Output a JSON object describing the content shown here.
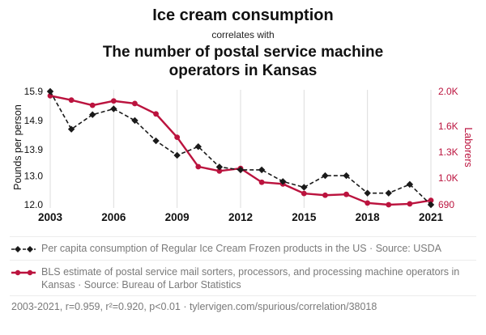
{
  "header": {
    "title": "Ice cream consumption",
    "subtitle": "correlates with",
    "correlate_title": "The number of postal service machine operators in Kansas"
  },
  "colors": {
    "accent_red": "#BB133E",
    "series_black": "#1a1a1a",
    "muted_text": "#7a7a7a",
    "gridline": "#dddddd"
  },
  "chart_data": {
    "type": "line",
    "x": [
      2003,
      2004,
      2005,
      2006,
      2007,
      2008,
      2009,
      2010,
      2011,
      2012,
      2013,
      2014,
      2015,
      2016,
      2017,
      2018,
      2019,
      2020,
      2021
    ],
    "x_ticks": [
      2003,
      2006,
      2009,
      2012,
      2015,
      2018,
      2021
    ],
    "series": [
      {
        "name": "Per capita consumption of Regular Ice Cream Frozen products in the US",
        "axis": "left",
        "color": "#1a1a1a",
        "style": "dashed",
        "marker": "diamond",
        "values": [
          15.9,
          14.6,
          15.1,
          15.3,
          14.9,
          14.2,
          13.7,
          14.0,
          13.3,
          13.2,
          13.2,
          12.8,
          12.6,
          13.0,
          13.0,
          12.4,
          12.4,
          12.7,
          12.0
        ]
      },
      {
        "name": "BLS estimate of postal service mail sorters, processors, and processing machine operators in Kansas",
        "axis": "right",
        "color": "#BB133E",
        "style": "solid",
        "marker": "circle",
        "values": [
          1950,
          1900,
          1840,
          1890,
          1860,
          1740,
          1470,
          1130,
          1080,
          1110,
          950,
          930,
          820,
          800,
          810,
          710,
          690,
          700,
          740
        ]
      }
    ],
    "left_axis": {
      "label": "Pounds per person",
      "min": 12.0,
      "max": 15.9,
      "ticks": [
        {
          "value": 15.9,
          "label": "15.9"
        },
        {
          "value": 14.9,
          "label": "14.9"
        },
        {
          "value": 13.9,
          "label": "13.9"
        },
        {
          "value": 13.0,
          "label": "13.0"
        },
        {
          "value": 12.0,
          "label": "12.0"
        }
      ]
    },
    "right_axis": {
      "label": "Laborers",
      "min": 690,
      "max": 2000,
      "ticks": [
        {
          "value": 2000,
          "label": "2.0K"
        },
        {
          "value": 1600,
          "label": "1.6K"
        },
        {
          "value": 1300,
          "label": "1.3K"
        },
        {
          "value": 1000,
          "label": "1.0K"
        },
        {
          "value": 690,
          "label": "690"
        }
      ]
    },
    "grid": "vertical-only",
    "legend_position": "bottom"
  },
  "legend": [
    {
      "icon": "black-dashed-diamond-line-icon",
      "text": "Per capita consumption of Regular Ice Cream Frozen products in the US · Source: USDA"
    },
    {
      "icon": "red-solid-circle-line-icon",
      "text": "BLS estimate of postal service mail sorters, processors, and processing machine operators in Kansas · Source: Bureau of Larbor Statistics"
    }
  ],
  "footer": "2003-2021, r=0.959, r²=0.920, p<0.01 · tylervigen.com/spurious/correlation/38018"
}
